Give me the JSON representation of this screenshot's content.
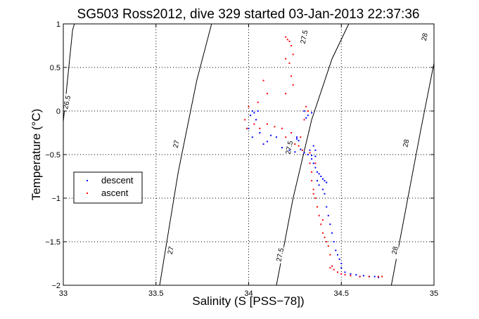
{
  "chart_data": {
    "type": "scatter",
    "title": "SG503 Ross2012, dive 329 started 03-Jan-2013 22:37:36",
    "xlabel": "Salinity (S [PSS−78])",
    "ylabel": "Temperature (°C)",
    "xlim": [
      33,
      35
    ],
    "ylim": [
      -2,
      1
    ],
    "xticks": [
      33,
      33.5,
      34,
      34.5,
      35
    ],
    "xtick_labels": [
      "33",
      "33.5",
      "34",
      "34.5",
      "35"
    ],
    "yticks": [
      -2,
      -1.5,
      -1,
      -0.5,
      0,
      0.5,
      1
    ],
    "ytick_labels": [
      "−2",
      "−1.5",
      "−1",
      "−0.5",
      "0",
      "0.5",
      "1"
    ],
    "grid": true,
    "legend_placement": "left",
    "density_contours": [
      {
        "label": "26.5",
        "points": [
          [
            33.0,
            -0.12
          ],
          [
            33.05,
            0.93
          ],
          [
            33.06,
            1.0
          ]
        ],
        "label_at": [
          33.02,
          0.1
        ]
      },
      {
        "label": "27",
        "points": [
          [
            33.52,
            -2.0
          ],
          [
            33.62,
            -0.7
          ],
          [
            33.72,
            0.35
          ],
          [
            33.8,
            1.0
          ]
        ],
        "label_at": [
          33.58,
          -1.6
        ],
        "label_at2": [
          33.61,
          -0.38
        ]
      },
      {
        "label": "27.5",
        "points": [
          [
            34.15,
            -2.0
          ],
          [
            34.24,
            -1.0
          ],
          [
            34.34,
            -0.1
          ],
          [
            34.45,
            0.6
          ],
          [
            34.54,
            1.0
          ]
        ],
        "label_at": [
          34.17,
          -1.65
        ],
        "label_at2": [
          34.22,
          -0.42
        ],
        "label_at3": [
          34.3,
          0.85
        ]
      },
      {
        "label": "28",
        "points": [
          [
            34.77,
            -2.0
          ],
          [
            34.85,
            -1.1
          ],
          [
            34.93,
            -0.2
          ],
          [
            35.0,
            0.55
          ]
        ],
        "label_at": [
          34.79,
          -1.6
        ],
        "label_at2": [
          34.85,
          -0.37
        ],
        "label_at3": [
          34.95,
          0.85
        ]
      }
    ],
    "series": [
      {
        "name": "descent",
        "color": "#0000ff",
        "points": [
          [
            34.02,
            0.0
          ],
          [
            34.03,
            -0.02
          ],
          [
            34.05,
            0.0
          ],
          [
            34.01,
            -0.05
          ],
          [
            34.04,
            -0.1
          ],
          [
            34.0,
            -0.2
          ],
          [
            34.02,
            -0.3
          ],
          [
            34.06,
            -0.25
          ],
          [
            34.1,
            -0.35
          ],
          [
            34.12,
            -0.28
          ],
          [
            34.08,
            -0.38
          ],
          [
            34.15,
            -0.3
          ],
          [
            34.18,
            -0.42
          ],
          [
            34.22,
            -0.45
          ],
          [
            34.25,
            -0.47
          ],
          [
            34.26,
            -0.3
          ],
          [
            34.26,
            -0.32
          ],
          [
            34.27,
            -0.34
          ],
          [
            34.28,
            -0.44
          ],
          [
            34.3,
            -0.48
          ],
          [
            34.32,
            -0.5
          ],
          [
            34.34,
            -0.51
          ],
          [
            34.33,
            -0.45
          ],
          [
            34.35,
            -0.4
          ],
          [
            34.36,
            -0.45
          ],
          [
            34.34,
            -0.55
          ],
          [
            34.35,
            -0.6
          ],
          [
            34.36,
            -0.65
          ],
          [
            34.37,
            -0.7
          ],
          [
            34.38,
            -0.72
          ],
          [
            34.39,
            -0.75
          ],
          [
            34.37,
            -0.8
          ],
          [
            34.38,
            -0.85
          ],
          [
            34.4,
            -0.78
          ],
          [
            34.41,
            -0.8
          ],
          [
            34.42,
            -0.82
          ],
          [
            34.4,
            -0.9
          ],
          [
            34.41,
            -0.95
          ],
          [
            34.42,
            -1.1
          ],
          [
            34.43,
            -1.2
          ],
          [
            34.44,
            -1.3
          ],
          [
            34.45,
            -1.4
          ],
          [
            34.46,
            -1.5
          ],
          [
            34.47,
            -1.6
          ],
          [
            34.48,
            -1.65
          ],
          [
            34.49,
            -1.7
          ],
          [
            34.5,
            -1.75
          ],
          [
            34.5,
            -1.8
          ],
          [
            34.52,
            -1.85
          ],
          [
            34.55,
            -1.87
          ],
          [
            34.58,
            -1.88
          ],
          [
            34.6,
            -1.9
          ],
          [
            34.62,
            -1.89
          ],
          [
            34.65,
            -1.9
          ],
          [
            34.68,
            -1.9
          ],
          [
            34.7,
            -1.91
          ],
          [
            34.34,
            -0.02
          ],
          [
            34.32,
            -0.05
          ],
          [
            34.3,
            0.0
          ],
          [
            34.31,
            -0.08
          ],
          [
            34.36,
            -0.52
          ]
        ]
      },
      {
        "name": "ascent",
        "color": "#ff0000",
        "points": [
          [
            34.2,
            0.85
          ],
          [
            34.22,
            0.8
          ],
          [
            34.23,
            0.75
          ],
          [
            34.21,
            0.82
          ],
          [
            34.2,
            0.6
          ],
          [
            34.22,
            0.55
          ],
          [
            34.24,
            0.65
          ],
          [
            34.23,
            0.4
          ],
          [
            34.24,
            0.3
          ],
          [
            34.2,
            0.2
          ],
          [
            34.1,
            0.2
          ],
          [
            34.08,
            0.35
          ],
          [
            34.05,
            0.1
          ],
          [
            34.0,
            0.05
          ],
          [
            33.98,
            -0.1
          ],
          [
            33.99,
            -0.2
          ],
          [
            34.03,
            -0.15
          ],
          [
            34.06,
            -0.2
          ],
          [
            34.1,
            -0.15
          ],
          [
            34.14,
            -0.18
          ],
          [
            34.18,
            -0.2
          ],
          [
            34.2,
            -0.3
          ],
          [
            34.23,
            -0.25
          ],
          [
            34.25,
            -0.38
          ],
          [
            34.27,
            -0.4
          ],
          [
            34.29,
            -0.45
          ],
          [
            34.31,
            0.05
          ],
          [
            34.32,
            0.0
          ],
          [
            34.3,
            -0.1
          ],
          [
            34.28,
            -0.3
          ],
          [
            34.33,
            -0.48
          ],
          [
            34.33,
            -0.6
          ],
          [
            34.34,
            -0.7
          ],
          [
            34.34,
            -0.8
          ],
          [
            34.35,
            -0.9
          ],
          [
            34.36,
            -1.0
          ],
          [
            34.37,
            -1.1
          ],
          [
            34.38,
            -1.2
          ],
          [
            34.39,
            -1.3
          ],
          [
            34.4,
            -1.4
          ],
          [
            34.41,
            -1.45
          ],
          [
            34.42,
            -1.5
          ],
          [
            34.43,
            -1.55
          ],
          [
            34.44,
            -1.65
          ],
          [
            34.45,
            -1.78
          ],
          [
            34.44,
            -1.8
          ],
          [
            34.46,
            -1.82
          ],
          [
            34.48,
            -1.85
          ],
          [
            34.5,
            -1.87
          ],
          [
            34.52,
            -1.88
          ],
          [
            34.55,
            -1.89
          ],
          [
            34.6,
            -1.9
          ],
          [
            34.65,
            -1.9
          ],
          [
            34.7,
            -1.9
          ],
          [
            34.72,
            -1.9
          ],
          [
            34.35,
            -0.95
          ],
          [
            34.36,
            -0.6
          ],
          [
            34.4,
            -1.25
          ]
        ]
      }
    ]
  }
}
